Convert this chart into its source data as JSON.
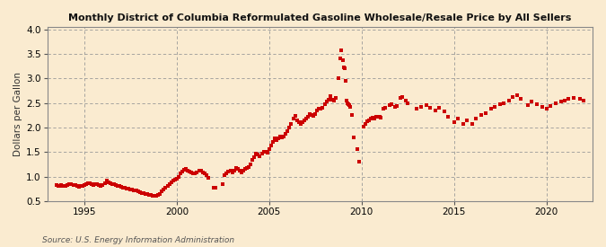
{
  "title": "Monthly District of Columbia Reformulated Gasoline Wholesale/Resale Price by All Sellers",
  "ylabel": "Dollars per Gallon",
  "source": "Source: U.S. Energy Information Administration",
  "background_color": "#faebd0",
  "marker_color": "#cc0000",
  "xlim": [
    1993.0,
    2022.5
  ],
  "ylim": [
    0.5,
    4.05
  ],
  "xticks": [
    1995,
    2000,
    2005,
    2010,
    2015,
    2020
  ],
  "yticks": [
    0.5,
    1.0,
    1.5,
    2.0,
    2.5,
    3.0,
    3.5,
    4.0
  ],
  "data": [
    [
      1993.5,
      0.83
    ],
    [
      1993.6,
      0.81
    ],
    [
      1993.7,
      0.8
    ],
    [
      1993.75,
      0.82
    ],
    [
      1993.9,
      0.81
    ],
    [
      1994.0,
      0.8
    ],
    [
      1994.1,
      0.82
    ],
    [
      1994.2,
      0.84
    ],
    [
      1994.3,
      0.85
    ],
    [
      1994.4,
      0.83
    ],
    [
      1994.5,
      0.82
    ],
    [
      1994.6,
      0.8
    ],
    [
      1994.7,
      0.79
    ],
    [
      1994.8,
      0.8
    ],
    [
      1994.9,
      0.81
    ],
    [
      1995.0,
      0.82
    ],
    [
      1995.1,
      0.85
    ],
    [
      1995.2,
      0.86
    ],
    [
      1995.3,
      0.87
    ],
    [
      1995.4,
      0.85
    ],
    [
      1995.5,
      0.83
    ],
    [
      1995.6,
      0.84
    ],
    [
      1995.7,
      0.84
    ],
    [
      1995.8,
      0.83
    ],
    [
      1995.9,
      0.81
    ],
    [
      1996.0,
      0.82
    ],
    [
      1996.1,
      0.87
    ],
    [
      1996.2,
      0.91
    ],
    [
      1996.3,
      0.89
    ],
    [
      1996.4,
      0.87
    ],
    [
      1996.5,
      0.85
    ],
    [
      1996.6,
      0.84
    ],
    [
      1996.7,
      0.82
    ],
    [
      1996.8,
      0.81
    ],
    [
      1996.9,
      0.8
    ],
    [
      1997.0,
      0.79
    ],
    [
      1997.1,
      0.78
    ],
    [
      1997.2,
      0.77
    ],
    [
      1997.3,
      0.76
    ],
    [
      1997.4,
      0.75
    ],
    [
      1997.5,
      0.74
    ],
    [
      1997.6,
      0.73
    ],
    [
      1997.7,
      0.72
    ],
    [
      1997.8,
      0.71
    ],
    [
      1997.9,
      0.7
    ],
    [
      1998.0,
      0.68
    ],
    [
      1998.1,
      0.67
    ],
    [
      1998.2,
      0.66
    ],
    [
      1998.3,
      0.65
    ],
    [
      1998.4,
      0.65
    ],
    [
      1998.5,
      0.63
    ],
    [
      1998.6,
      0.62
    ],
    [
      1998.7,
      0.61
    ],
    [
      1998.8,
      0.6
    ],
    [
      1998.9,
      0.61
    ],
    [
      1999.0,
      0.62
    ],
    [
      1999.1,
      0.65
    ],
    [
      1999.2,
      0.7
    ],
    [
      1999.3,
      0.74
    ],
    [
      1999.4,
      0.78
    ],
    [
      1999.5,
      0.81
    ],
    [
      1999.6,
      0.85
    ],
    [
      1999.7,
      0.88
    ],
    [
      1999.8,
      0.91
    ],
    [
      1999.9,
      0.93
    ],
    [
      2000.0,
      0.96
    ],
    [
      2000.1,
      1.0
    ],
    [
      2000.2,
      1.06
    ],
    [
      2000.3,
      1.1
    ],
    [
      2000.4,
      1.14
    ],
    [
      2000.5,
      1.15
    ],
    [
      2000.6,
      1.12
    ],
    [
      2000.7,
      1.1
    ],
    [
      2000.8,
      1.09
    ],
    [
      2000.9,
      1.07
    ],
    [
      2001.0,
      1.06
    ],
    [
      2001.1,
      1.08
    ],
    [
      2001.2,
      1.12
    ],
    [
      2001.3,
      1.11
    ],
    [
      2001.4,
      1.09
    ],
    [
      2001.5,
      1.06
    ],
    [
      2001.6,
      1.03
    ],
    [
      2001.7,
      0.98
    ],
    [
      2002.0,
      0.78
    ],
    [
      2002.1,
      0.77
    ],
    [
      2002.5,
      0.85
    ],
    [
      2002.6,
      1.02
    ],
    [
      2002.7,
      1.06
    ],
    [
      2002.8,
      1.1
    ],
    [
      2002.9,
      1.11
    ],
    [
      2003.0,
      1.09
    ],
    [
      2003.1,
      1.12
    ],
    [
      2003.2,
      1.17
    ],
    [
      2003.3,
      1.15
    ],
    [
      2003.4,
      1.11
    ],
    [
      2003.5,
      1.09
    ],
    [
      2003.6,
      1.12
    ],
    [
      2003.7,
      1.15
    ],
    [
      2003.8,
      1.18
    ],
    [
      2003.9,
      1.2
    ],
    [
      2004.0,
      1.25
    ],
    [
      2004.1,
      1.33
    ],
    [
      2004.2,
      1.4
    ],
    [
      2004.3,
      1.46
    ],
    [
      2004.4,
      1.44
    ],
    [
      2004.5,
      1.42
    ],
    [
      2004.6,
      1.46
    ],
    [
      2004.7,
      1.5
    ],
    [
      2004.8,
      1.5
    ],
    [
      2004.9,
      1.49
    ],
    [
      2005.0,
      1.55
    ],
    [
      2005.1,
      1.63
    ],
    [
      2005.2,
      1.7
    ],
    [
      2005.3,
      1.77
    ],
    [
      2005.4,
      1.74
    ],
    [
      2005.5,
      1.78
    ],
    [
      2005.6,
      1.82
    ],
    [
      2005.7,
      1.8
    ],
    [
      2005.8,
      1.82
    ],
    [
      2005.9,
      1.87
    ],
    [
      2006.0,
      1.93
    ],
    [
      2006.1,
      2.0
    ],
    [
      2006.2,
      2.08
    ],
    [
      2006.3,
      2.18
    ],
    [
      2006.4,
      2.23
    ],
    [
      2006.5,
      2.14
    ],
    [
      2006.6,
      2.1
    ],
    [
      2006.7,
      2.07
    ],
    [
      2006.8,
      2.1
    ],
    [
      2006.9,
      2.14
    ],
    [
      2007.0,
      2.18
    ],
    [
      2007.1,
      2.22
    ],
    [
      2007.2,
      2.27
    ],
    [
      2007.3,
      2.26
    ],
    [
      2007.4,
      2.24
    ],
    [
      2007.5,
      2.28
    ],
    [
      2007.6,
      2.34
    ],
    [
      2007.7,
      2.38
    ],
    [
      2007.8,
      2.38
    ],
    [
      2007.9,
      2.4
    ],
    [
      2008.0,
      2.48
    ],
    [
      2008.1,
      2.52
    ],
    [
      2008.2,
      2.57
    ],
    [
      2008.3,
      2.63
    ],
    [
      2008.4,
      2.57
    ],
    [
      2008.5,
      2.55
    ],
    [
      2008.6,
      2.6
    ],
    [
      2008.75,
      3.01
    ],
    [
      2008.83,
      3.4
    ],
    [
      2008.9,
      3.58
    ],
    [
      2009.0,
      3.38
    ],
    [
      2009.05,
      3.22
    ],
    [
      2009.1,
      3.2
    ],
    [
      2009.15,
      2.95
    ],
    [
      2009.2,
      2.55
    ],
    [
      2009.25,
      2.5
    ],
    [
      2009.3,
      2.48
    ],
    [
      2009.35,
      2.45
    ],
    [
      2009.4,
      2.42
    ],
    [
      2009.5,
      2.25
    ],
    [
      2009.6,
      1.8
    ],
    [
      2009.75,
      1.55
    ],
    [
      2009.85,
      1.3
    ],
    [
      2010.1,
      2.02
    ],
    [
      2010.2,
      2.08
    ],
    [
      2010.3,
      2.12
    ],
    [
      2010.4,
      2.15
    ],
    [
      2010.5,
      2.18
    ],
    [
      2010.6,
      2.2
    ],
    [
      2010.7,
      2.18
    ],
    [
      2010.8,
      2.21
    ],
    [
      2010.9,
      2.22
    ],
    [
      2011.0,
      2.22
    ],
    [
      2011.05,
      2.2
    ],
    [
      2011.2,
      2.38
    ],
    [
      2011.3,
      2.4
    ],
    [
      2011.5,
      2.45
    ],
    [
      2011.6,
      2.48
    ],
    [
      2011.8,
      2.42
    ],
    [
      2011.9,
      2.44
    ],
    [
      2012.1,
      2.6
    ],
    [
      2012.2,
      2.62
    ],
    [
      2012.4,
      2.55
    ],
    [
      2012.5,
      2.5
    ],
    [
      2013.0,
      2.38
    ],
    [
      2013.2,
      2.42
    ],
    [
      2013.5,
      2.45
    ],
    [
      2013.7,
      2.4
    ],
    [
      2014.0,
      2.35
    ],
    [
      2014.2,
      2.4
    ],
    [
      2014.5,
      2.32
    ],
    [
      2014.7,
      2.22
    ],
    [
      2015.0,
      2.1
    ],
    [
      2015.2,
      2.18
    ],
    [
      2015.5,
      2.08
    ],
    [
      2015.7,
      2.14
    ],
    [
      2016.0,
      2.08
    ],
    [
      2016.2,
      2.18
    ],
    [
      2016.5,
      2.26
    ],
    [
      2016.7,
      2.3
    ],
    [
      2017.0,
      2.38
    ],
    [
      2017.2,
      2.42
    ],
    [
      2017.5,
      2.48
    ],
    [
      2017.7,
      2.5
    ],
    [
      2018.0,
      2.55
    ],
    [
      2018.2,
      2.62
    ],
    [
      2018.4,
      2.65
    ],
    [
      2018.6,
      2.58
    ],
    [
      2019.0,
      2.45
    ],
    [
      2019.2,
      2.52
    ],
    [
      2019.5,
      2.48
    ],
    [
      2019.8,
      2.42
    ],
    [
      2020.0,
      2.38
    ],
    [
      2020.2,
      2.44
    ],
    [
      2020.5,
      2.5
    ],
    [
      2020.8,
      2.52
    ],
    [
      2021.0,
      2.55
    ],
    [
      2021.2,
      2.58
    ],
    [
      2021.5,
      2.6
    ],
    [
      2021.8,
      2.58
    ],
    [
      2022.0,
      2.55
    ]
  ]
}
